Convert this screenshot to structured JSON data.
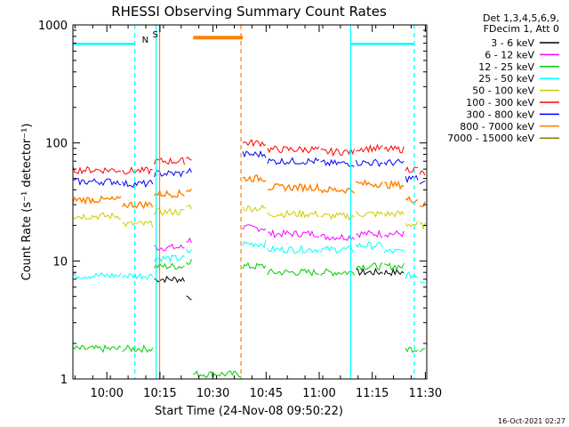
{
  "chart_data": {
    "type": "line",
    "title": "RHESSI Observing Summary Count Rates",
    "xlabel": "Start Time (24-Nov-08 09:50:22)",
    "ylabel": "Count Rate (s⁻¹ detector⁻¹)",
    "yscale": "log",
    "ylim": [
      1,
      1000
    ],
    "xlim_minutes": [
      0,
      100
    ],
    "grid": false,
    "legend_position": "right",
    "legend_header": [
      "Det 1,3,4,5,6,9,",
      "FDecim 1, Att 0"
    ],
    "x_ticks": [
      "10:00",
      "10:15",
      "10:30",
      "10:45",
      "11:00",
      "11:15",
      "11:30"
    ],
    "y_ticks": [
      "1",
      "10",
      "100",
      "1000"
    ],
    "timestamp": "16-Oct-2021 02:27",
    "flags": [
      {
        "label": "N",
        "color": "#f08020"
      },
      {
        "label": "S",
        "color": "#f08020"
      }
    ],
    "series": [
      {
        "name": "3 - 6 keV",
        "color": "#000000",
        "values": [
          null,
          null,
          7,
          5,
          null,
          null,
          null,
          null,
          8,
          8,
          null,
          null
        ]
      },
      {
        "name": "6 - 12 keV",
        "color": "#ff00ff",
        "values": [
          null,
          null,
          13,
          15,
          null,
          19,
          17,
          16,
          17,
          17,
          null,
          null
        ]
      },
      {
        "name": "12 - 25 keV",
        "color": "#00cc00",
        "values": [
          1.8,
          1.8,
          9,
          10,
          1.1,
          9,
          8,
          8,
          9,
          9,
          1.8,
          1.8
        ]
      },
      {
        "name": "25 - 50 keV",
        "color": "#00ffff",
        "values": [
          7.5,
          7.5,
          10.5,
          12,
          null,
          14,
          12.5,
          12.5,
          13.5,
          12,
          7.5,
          6.8
        ]
      },
      {
        "name": "50 - 100 keV",
        "color": "#cccc00",
        "values": [
          24,
          20.5,
          26,
          29,
          null,
          28,
          25,
          24,
          25,
          25,
          20.5,
          20
        ]
      },
      {
        "name": "100 - 300 keV",
        "color": "#ff0000",
        "values": [
          59,
          58,
          70,
          75,
          null,
          100,
          88,
          84,
          90,
          88,
          60,
          55
        ]
      },
      {
        "name": "300 - 800 keV",
        "color": "#0000ff",
        "values": [
          47,
          45,
          55,
          58,
          null,
          80,
          70,
          67,
          68,
          68,
          50,
          45
        ]
      },
      {
        "name": "800 - 7000 keV",
        "color": "#ff8000",
        "values": [
          33,
          30,
          37,
          40,
          780,
          50,
          42,
          40,
          45,
          44,
          33,
          30
        ]
      },
      {
        "name": "7000 - 15000 keV",
        "color": "#808000",
        "values": [
          null,
          null,
          null,
          null,
          null,
          null,
          null,
          null,
          null,
          null,
          null,
          null
        ]
      }
    ]
  }
}
